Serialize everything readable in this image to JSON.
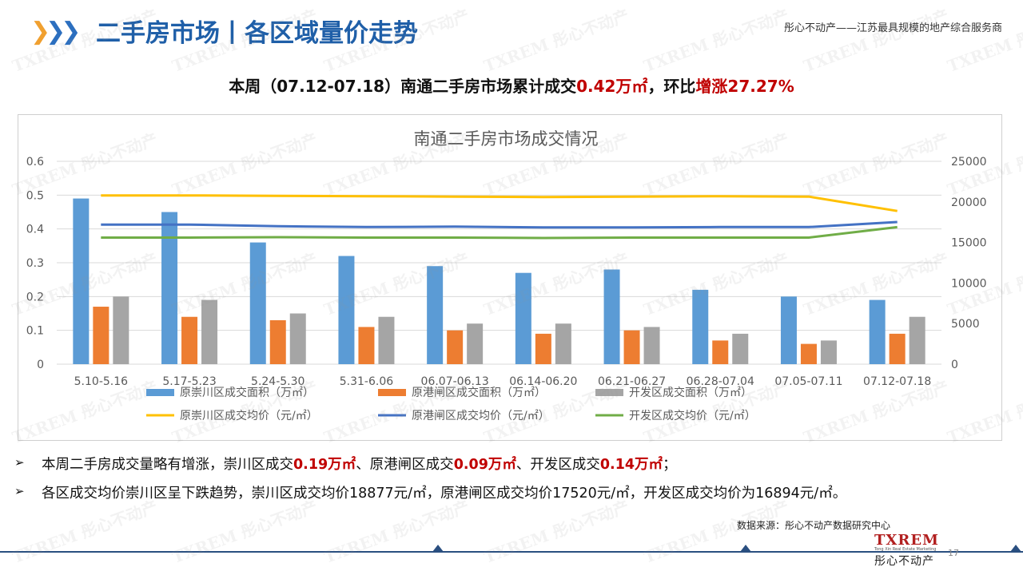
{
  "header": {
    "title": "二手房市场丨各区域量价走势",
    "slogan": "彤心不动产——江苏最具规模的地产综合服务商"
  },
  "headline": {
    "prefix": "本周（07.12-07.18）南通二手房市场累计成交",
    "volume": "0.42万㎡",
    "middle": "，环比",
    "change": "增涨27.27%"
  },
  "chart_data": {
    "type": "bar",
    "title": "南通二手房市场成交情况",
    "categories": [
      "5.10-5.16",
      "5.17-5.23",
      "5.24-5.30",
      "5.31-6.06",
      "06.07-06.13",
      "06.14-06.20",
      "06.21-06.27",
      "06.28-07.04",
      "07.05-07.11",
      "07.12-07.18"
    ],
    "ylim": [
      0,
      0.6
    ],
    "y2lim": [
      0,
      25000
    ],
    "yticks": [
      "0",
      "0.1",
      "0.2",
      "0.3",
      "0.4",
      "0.5",
      "0.6"
    ],
    "y2ticks": [
      "0",
      "5000",
      "10000",
      "15000",
      "20000",
      "25000"
    ],
    "bar_series": [
      {
        "name": "原崇川区成交面积（万㎡）",
        "color": "#5b9bd5",
        "values": [
          0.49,
          0.45,
          0.36,
          0.32,
          0.29,
          0.27,
          0.28,
          0.22,
          0.2,
          0.19
        ]
      },
      {
        "name": "原港闸区成交面积（万㎡）",
        "color": "#ed7d31",
        "values": [
          0.17,
          0.14,
          0.13,
          0.11,
          0.1,
          0.09,
          0.1,
          0.07,
          0.06,
          0.09
        ]
      },
      {
        "name": "开发区成交面积（万㎡）",
        "color": "#a5a5a5",
        "values": [
          0.2,
          0.19,
          0.15,
          0.14,
          0.12,
          0.12,
          0.11,
          0.09,
          0.07,
          0.14
        ]
      }
    ],
    "line_series": [
      {
        "name": "原崇川区成交均价（元/㎡）",
        "color": "#ffc000",
        "values": [
          20800,
          20800,
          20750,
          20700,
          20650,
          20600,
          20650,
          20700,
          20650,
          18877
        ]
      },
      {
        "name": "原港闸区成交均价（元/㎡）",
        "color": "#4472c4",
        "values": [
          17200,
          17200,
          17000,
          16900,
          16950,
          16850,
          16850,
          16900,
          16900,
          17520
        ]
      },
      {
        "name": "开发区成交均价（元/㎡）",
        "color": "#70ad47",
        "values": [
          15600,
          15600,
          15650,
          15600,
          15600,
          15550,
          15600,
          15600,
          15600,
          16894
        ]
      }
    ],
    "legend_position": "bottom",
    "grid": true
  },
  "bullets": [
    {
      "marker": "➢",
      "parts": [
        {
          "t": "本周二手房成交量略有增涨，崇川区成交",
          "b": false
        },
        {
          "t": "0.19万㎡",
          "b": true
        },
        {
          "t": "、原港闸区成交",
          "b": false
        },
        {
          "t": "0.09万㎡",
          "b": true
        },
        {
          "t": "、开发区成交",
          "b": false
        },
        {
          "t": "0.14万㎡",
          "b": true
        },
        {
          "t": "；",
          "b": false
        }
      ]
    },
    {
      "marker": "➢",
      "parts": [
        {
          "t": "各区成交均价崇川区呈下跌趋势，崇川区成交均价18877元/㎡，原港闸区成交均价17520元/㎡，开发区成交均价为16894元/㎡。",
          "b": false
        }
      ]
    }
  ],
  "footer": {
    "source": "数据来源：彤心不动产数据研究中心",
    "logo_main": "TXREM",
    "logo_sub": "Tong Xin Real Estate Marketing",
    "logo_cn": "彤心不动产",
    "page": "17"
  },
  "watermark": "TXREM 彤心不动产"
}
